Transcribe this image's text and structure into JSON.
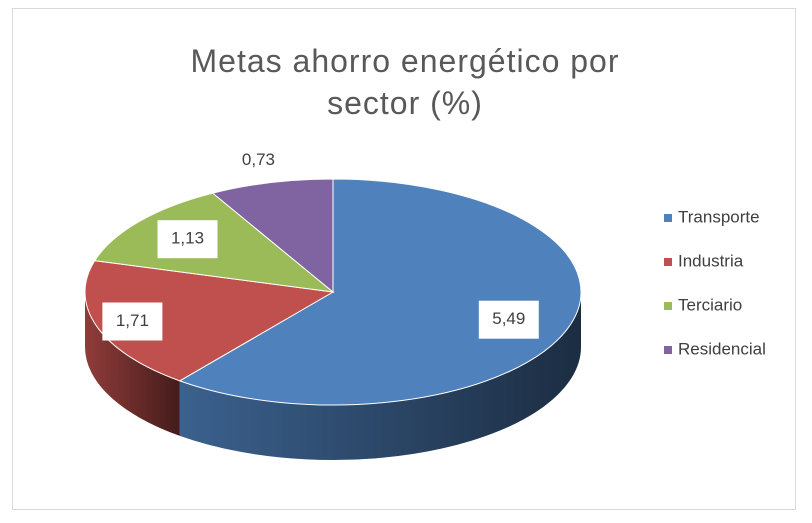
{
  "chart_data": {
    "type": "pie",
    "title": "Metas ahorro energético por sector (%)",
    "categories": [
      "Transporte",
      "Industria",
      "Terciario",
      "Residencial"
    ],
    "values": [
      5.49,
      1.71,
      1.13,
      0.73
    ],
    "value_labels": [
      "5,49",
      "1,71",
      "1,13",
      "0,73"
    ],
    "colors": [
      "#4f81bd",
      "#c0504d",
      "#9bbb59",
      "#8064a2"
    ],
    "legend": "right"
  }
}
